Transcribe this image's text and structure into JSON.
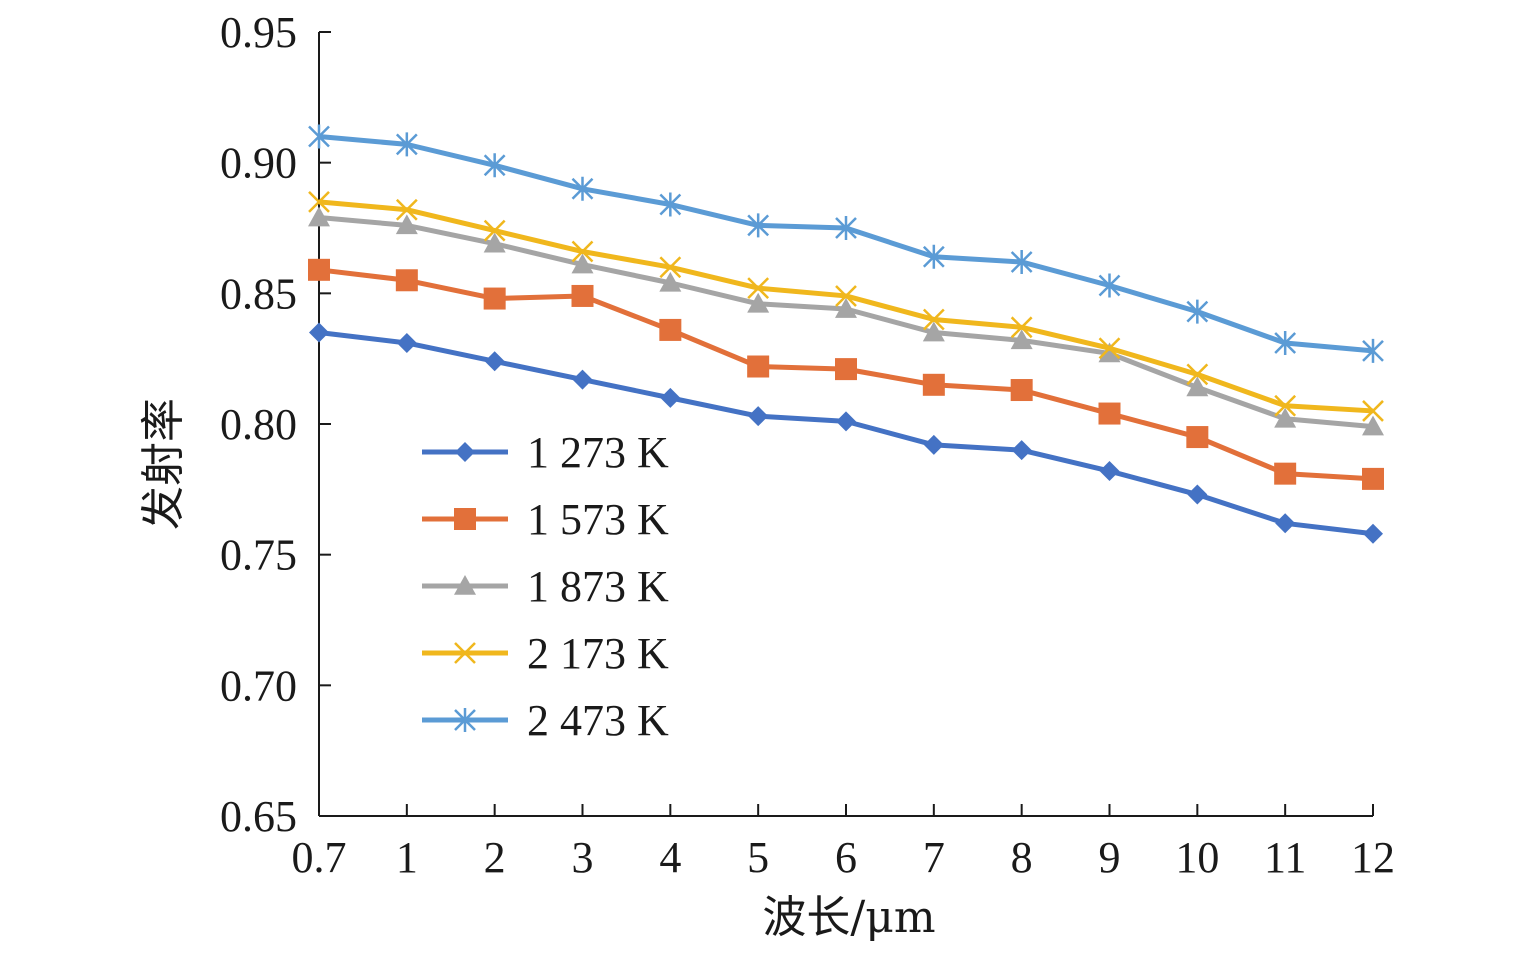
{
  "chart_data": {
    "type": "line",
    "xlabel": "波长/μm",
    "ylabel": "发射率",
    "categories": [
      "0.7",
      "1",
      "2",
      "3",
      "4",
      "5",
      "6",
      "7",
      "8",
      "9",
      "10",
      "11",
      "12"
    ],
    "ylim": [
      0.65,
      0.95
    ],
    "yticks": [
      "0.65",
      "0.70",
      "0.75",
      "0.80",
      "0.85",
      "0.90",
      "0.95"
    ],
    "grid": false,
    "legend_position": "left",
    "series": [
      {
        "name": "1 273 K",
        "color": "#4472c4",
        "marker": "diamond",
        "values": [
          0.835,
          0.831,
          0.824,
          0.817,
          0.81,
          0.803,
          0.801,
          0.792,
          0.79,
          0.782,
          0.773,
          0.762,
          0.758
        ]
      },
      {
        "name": "1 573 K",
        "color": "#e2703a",
        "marker": "square",
        "values": [
          0.859,
          0.855,
          0.848,
          0.849,
          0.836,
          0.822,
          0.821,
          0.815,
          0.813,
          0.804,
          0.795,
          0.781,
          0.779
        ]
      },
      {
        "name": "1 873 K",
        "color": "#a5a5a5",
        "marker": "triangle",
        "values": [
          0.879,
          0.876,
          0.869,
          0.861,
          0.854,
          0.846,
          0.844,
          0.835,
          0.832,
          0.827,
          0.814,
          0.802,
          0.799
        ]
      },
      {
        "name": "2 173 K",
        "color": "#f0b71d",
        "marker": "x",
        "values": [
          0.885,
          0.882,
          0.874,
          0.866,
          0.86,
          0.852,
          0.849,
          0.84,
          0.837,
          0.829,
          0.819,
          0.807,
          0.805
        ]
      },
      {
        "name": "2 473 K",
        "color": "#5b9bd5",
        "marker": "star",
        "values": [
          0.91,
          0.907,
          0.899,
          0.89,
          0.884,
          0.876,
          0.875,
          0.864,
          0.862,
          0.853,
          0.843,
          0.831,
          0.828
        ]
      }
    ]
  }
}
